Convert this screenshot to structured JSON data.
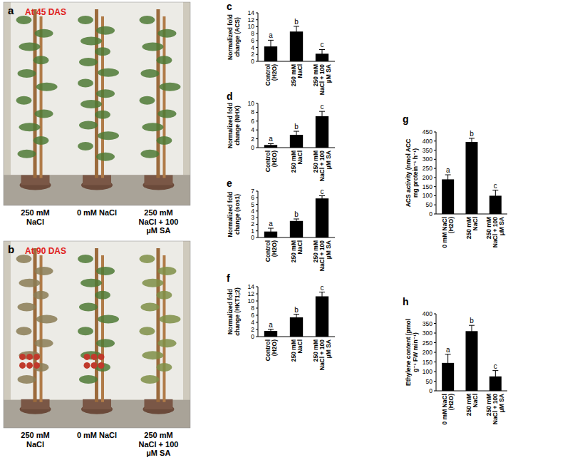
{
  "photos": [
    {
      "panel_label": "a",
      "caption": "At 45 DAS",
      "treatments": [
        "250 mM NaCl",
        "0 mM NaCl",
        "250 mM NaCl + 100 µM SA"
      ]
    },
    {
      "panel_label": "b",
      "caption": "At 90 DAS",
      "treatments": [
        "250 mM NaCl",
        "0 mM NaCl",
        "250 mM NaCl + 100 µM SA"
      ]
    }
  ],
  "chart_data": [
    {
      "type": "bar",
      "panel_label": "c",
      "y_label": "Normalized fold change (ACS)",
      "categories": [
        "Control (H2O)",
        "250 mM NaCl",
        "250 mM NaCl + 100 µM SA"
      ],
      "values": [
        4.3,
        8.6,
        2.2
      ],
      "errors": [
        1.8,
        1.5,
        1.2
      ],
      "annotations": [
        "a",
        "b",
        "c"
      ],
      "color": "#000000",
      "ylim": [
        0,
        14
      ],
      "yticks": [
        0,
        2,
        4,
        6,
        8,
        10,
        12,
        14
      ]
    },
    {
      "type": "bar",
      "panel_label": "d",
      "y_label": "Normalized fold change (NHX)",
      "categories": [
        "Control (H2O)",
        "250 mM NaCl",
        "250 mM NaCl + 100 µM SA"
      ],
      "values": [
        0.6,
        2.9,
        7.1
      ],
      "errors": [
        0.3,
        0.8,
        1.1
      ],
      "annotations": [
        "a",
        "b",
        "c"
      ],
      "color": "#000000",
      "ylim": [
        0,
        10
      ],
      "yticks": [
        0,
        2,
        4,
        6,
        8,
        10
      ]
    },
    {
      "type": "bar",
      "panel_label": "e",
      "y_label": "Normalized fold change (sos1)",
      "categories": [
        "Control (H2O)",
        "250 mM NaCl",
        "250 mM NaCl + 100 µM SA"
      ],
      "values": [
        0.9,
        2.5,
        5.9
      ],
      "errors": [
        0.5,
        0.3,
        0.4
      ],
      "annotations": [
        "a",
        "b",
        "c"
      ],
      "color": "#000000",
      "ylim": [
        0,
        7
      ],
      "yticks": [
        0,
        1,
        2,
        3,
        4,
        5,
        6,
        7
      ]
    },
    {
      "type": "bar",
      "panel_label": "f",
      "y_label": "Normalized fold change (HKT1;2)",
      "categories": [
        "Control (H2O)",
        "250 mM NaCl",
        "250 mM NaCl + 100 µM SA"
      ],
      "values": [
        1.6,
        5.4,
        11.3
      ],
      "errors": [
        0.5,
        0.9,
        1.2
      ],
      "annotations": [
        "a",
        "b",
        "c"
      ],
      "color": "#000000",
      "ylim": [
        0,
        14
      ],
      "yticks": [
        0,
        2,
        4,
        6,
        8,
        10,
        12,
        14
      ]
    },
    {
      "type": "bar",
      "panel_label": "g",
      "y_label": "ACS activity (nmol ACC mg protein⁻¹ h⁻¹)",
      "categories": [
        "0 mM NaCl (H2O)",
        "250 mM NaCl",
        "250 mM NaCl + 100 µM SA"
      ],
      "values": [
        190,
        395,
        100
      ],
      "errors": [
        25,
        20,
        30
      ],
      "annotations": [
        "a",
        "b",
        "c"
      ],
      "color": "#000000",
      "ylim": [
        0,
        450
      ],
      "yticks": [
        0,
        50,
        100,
        150,
        200,
        250,
        300,
        350,
        400,
        450
      ]
    },
    {
      "type": "bar",
      "panel_label": "h",
      "y_label": "Ethylene content (pmol g⁻¹ FW min⁻¹)",
      "categories": [
        "0 mM NaCl (H2O)",
        "250 mM NaCl",
        "250 mM NaCl + 100 µM SA"
      ],
      "values": [
        145,
        310,
        75
      ],
      "errors": [
        45,
        30,
        30
      ],
      "annotations": [
        "a",
        "b",
        "c"
      ],
      "color": "#000000",
      "ylim": [
        0,
        400
      ],
      "yticks": [
        0,
        50,
        100,
        150,
        200,
        250,
        300,
        350,
        400
      ]
    }
  ]
}
